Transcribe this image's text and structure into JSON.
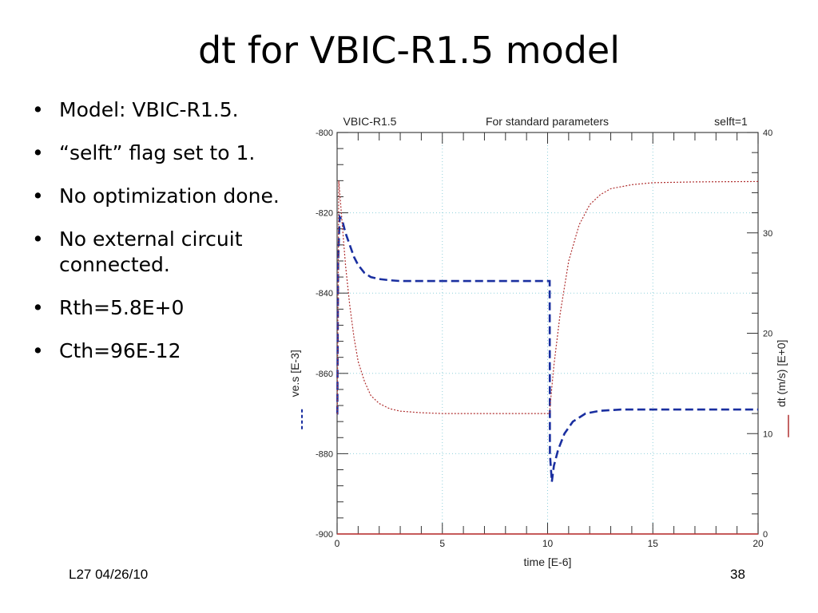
{
  "slide": {
    "title": "dt for VBIC-R1.5 model",
    "bullets": [
      "Model: VBIC-R1.5.",
      "“selft” flag set to 1.",
      "No optimization done.",
      "No external circuit connected.",
      "Rth=5.8E+0",
      "Cth=96E-12"
    ],
    "bullet_symbol": "•",
    "footer_left": "L27 04/26/10",
    "footer_right": "38"
  },
  "chart_data": {
    "type": "line",
    "header": [
      "VBIC-R1.5",
      "For standard parameters",
      "selft=1"
    ],
    "xlabel": "time  [E-6]",
    "ylabel_left": "ve.s  [E-3]",
    "ylabel_right": "dt (m/s)  [E+0]",
    "xlim": [
      0,
      20
    ],
    "ylim_left": [
      -900,
      -800
    ],
    "ylim_right": [
      0,
      40
    ],
    "x_ticks": [
      "0",
      "5",
      "10",
      "15",
      "20"
    ],
    "y_left_ticks": [
      "-800",
      "-820",
      "-840",
      "-860",
      "-880",
      "-900"
    ],
    "y_right_ticks": [
      "40",
      "30",
      "20",
      "10",
      "0"
    ],
    "colors": {
      "blue": "#1a2fa0",
      "red": "#b03030",
      "axis_red": "#c03030",
      "grid": "#8fd0dc"
    },
    "grid": true,
    "series": [
      {
        "axis": "left",
        "color": "#1a2fa0",
        "style": "dashed",
        "x": [
          0.0,
          0.01,
          0.05,
          0.12,
          0.25,
          0.4,
          0.6,
          0.8,
          1.0,
          1.3,
          1.6,
          2.0,
          2.5,
          3.0,
          4.0,
          5.0,
          6.0,
          8.0,
          10.1,
          10.11,
          10.2,
          10.3,
          10.5,
          10.8,
          11.2,
          11.8,
          12.5,
          13.5,
          15.0,
          17.0,
          20.0
        ],
        "values": [
          -870,
          -870,
          -832,
          -821,
          -822,
          -825,
          -828,
          -831,
          -833,
          -835,
          -836,
          -836.5,
          -836.8,
          -837,
          -837,
          -837,
          -837,
          -837,
          -837,
          -880,
          -887,
          -883,
          -879,
          -875,
          -872,
          -870,
          -869.3,
          -869,
          -869,
          -869,
          -869
        ]
      },
      {
        "axis": "left",
        "color": "#b03030",
        "style": "dotted",
        "x": [
          0.0,
          0.01,
          0.08,
          0.2,
          0.4,
          0.6,
          0.8,
          1.0,
          1.3,
          1.6,
          2.0,
          2.5,
          3.0,
          4.0,
          5.0,
          6.0,
          8.0,
          10.1,
          10.12,
          10.3,
          10.6,
          11.0,
          11.5,
          12.0,
          12.5,
          13.0,
          14.0,
          15.0,
          17.0,
          20.0
        ],
        "values": [
          -870,
          -870,
          -812,
          -820,
          -833,
          -843,
          -851,
          -857,
          -862,
          -865.5,
          -867.5,
          -868.8,
          -869.4,
          -869.8,
          -870,
          -870,
          -870,
          -870,
          -868,
          -858,
          -845,
          -832,
          -823,
          -818,
          -815.5,
          -814,
          -813,
          -812.5,
          -812.3,
          -812.2
        ]
      },
      {
        "axis": "right",
        "color": "#c03030",
        "style": "solid",
        "x": [
          0,
          20
        ],
        "values": [
          0,
          0
        ]
      }
    ]
  }
}
